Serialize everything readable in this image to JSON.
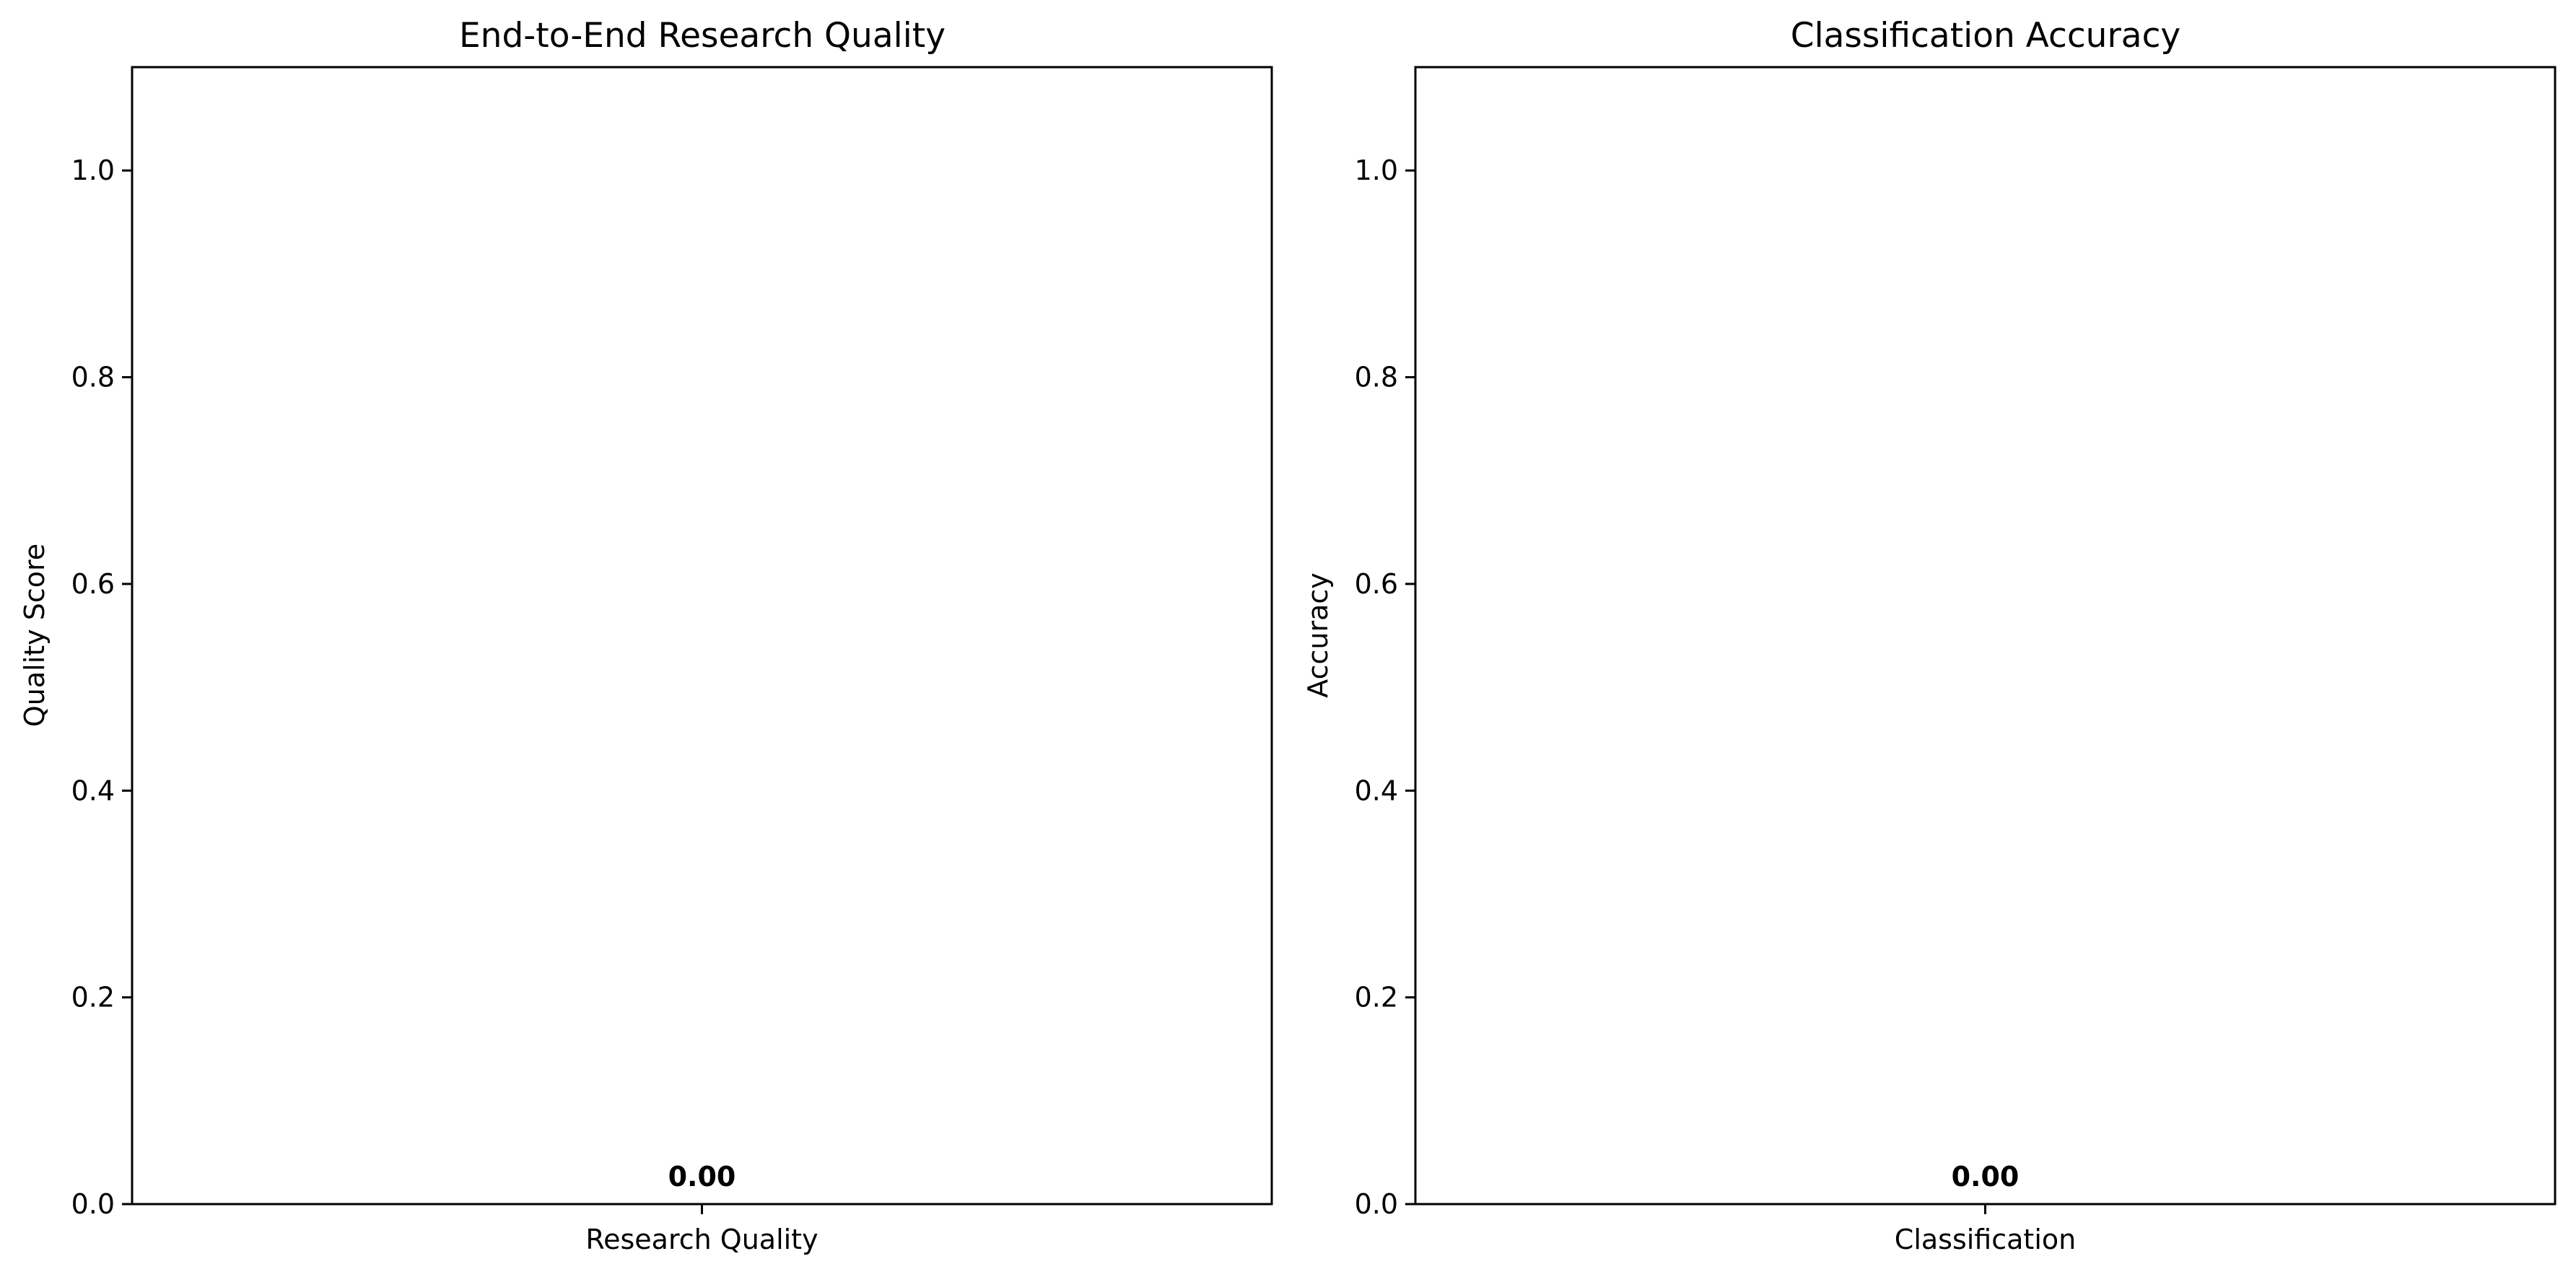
{
  "chart_data": [
    {
      "type": "bar",
      "title": "End-to-End Research Quality",
      "xlabel": "",
      "ylabel": "Quality Score",
      "categories": [
        "Research Quality"
      ],
      "values": [
        0.0
      ],
      "data_labels": [
        "0.00"
      ],
      "ylim": [
        0,
        1.1
      ],
      "yticks": [
        0.0,
        0.2,
        0.4,
        0.6,
        0.8,
        1.0
      ],
      "ytick_labels": [
        "0.0",
        "0.2",
        "0.4",
        "0.6",
        "0.8",
        "1.0"
      ],
      "grid": false,
      "bar_color": "#4c72b0"
    },
    {
      "type": "bar",
      "title": "Classification Accuracy",
      "xlabel": "",
      "ylabel": "Accuracy",
      "categories": [
        "Classification"
      ],
      "values": [
        0.0
      ],
      "data_labels": [
        "0.00"
      ],
      "ylim": [
        0,
        1.1
      ],
      "yticks": [
        0.0,
        0.2,
        0.4,
        0.6,
        0.8,
        1.0
      ],
      "ytick_labels": [
        "0.0",
        "0.2",
        "0.4",
        "0.6",
        "0.8",
        "1.0"
      ],
      "grid": false,
      "bar_color": "#55a868"
    }
  ]
}
